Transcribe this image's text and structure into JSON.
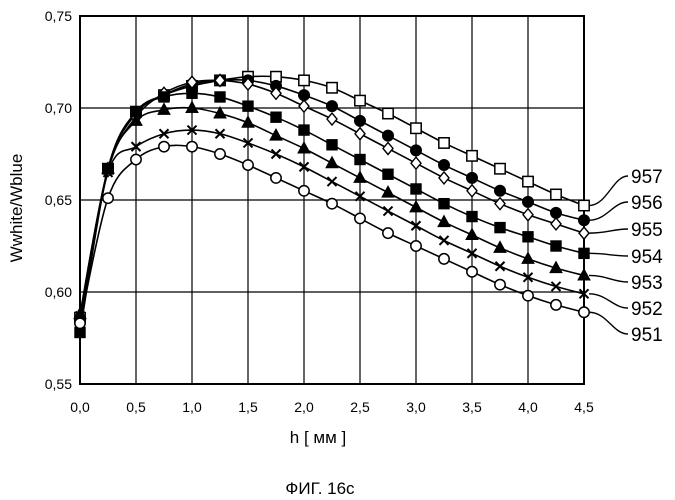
{
  "chart_data": {
    "type": "line",
    "title": "",
    "xlabel": "h [ мм ]",
    "ylabel": "Wwhite/Wblue",
    "xlim": [
      0.0,
      4.5
    ],
    "ylim": [
      0.55,
      0.75
    ],
    "x_ticks": [
      "0,0",
      "0,5",
      "1,0",
      "1,5",
      "2,0",
      "2,5",
      "3,0",
      "3,5",
      "4,0",
      "4,5"
    ],
    "x_tick_values": [
      0.0,
      0.5,
      1.0,
      1.5,
      2.0,
      2.5,
      3.0,
      3.5,
      4.0,
      4.5
    ],
    "y_ticks": [
      "0,55",
      "0,60",
      "0,65",
      "0,70",
      "0,75"
    ],
    "y_tick_values": [
      0.55,
      0.6,
      0.65,
      0.7,
      0.75
    ],
    "grid": "horizontal and vertical",
    "x": [
      0.0,
      0.25,
      0.5,
      0.75,
      1.0,
      1.25,
      1.5,
      1.75,
      2.0,
      2.25,
      2.5,
      2.75,
      3.0,
      3.25,
      3.5,
      3.75,
      4.0,
      4.25,
      4.5
    ],
    "series": [
      {
        "name": "957",
        "marker": "open-square",
        "values": [
          0.586,
          0.667,
          0.698,
          0.707,
          0.712,
          0.715,
          0.717,
          0.717,
          0.715,
          0.711,
          0.704,
          0.697,
          0.689,
          0.681,
          0.674,
          0.667,
          0.66,
          0.653,
          0.647
        ]
      },
      {
        "name": "956",
        "marker": "filled-circle",
        "values": [
          0.585,
          0.667,
          0.697,
          0.707,
          0.713,
          0.715,
          0.715,
          0.712,
          0.707,
          0.701,
          0.693,
          0.685,
          0.677,
          0.669,
          0.662,
          0.655,
          0.649,
          0.643,
          0.639
        ]
      },
      {
        "name": "955",
        "marker": "open-diamond",
        "values": [
          0.584,
          0.666,
          0.695,
          0.708,
          0.714,
          0.715,
          0.713,
          0.708,
          0.701,
          0.694,
          0.686,
          0.678,
          0.67,
          0.662,
          0.655,
          0.648,
          0.642,
          0.637,
          0.632
        ]
      },
      {
        "name": "954",
        "marker": "filled-square",
        "values": [
          0.578,
          0.667,
          0.698,
          0.706,
          0.708,
          0.706,
          0.701,
          0.695,
          0.688,
          0.68,
          0.672,
          0.664,
          0.656,
          0.648,
          0.641,
          0.635,
          0.63,
          0.625,
          0.621
        ]
      },
      {
        "name": "953",
        "marker": "filled-triangle",
        "values": [
          0.588,
          0.667,
          0.693,
          0.699,
          0.7,
          0.697,
          0.692,
          0.685,
          0.678,
          0.67,
          0.662,
          0.654,
          0.646,
          0.638,
          0.631,
          0.624,
          0.618,
          0.613,
          0.609
        ]
      },
      {
        "name": "952",
        "marker": "cross",
        "values": [
          0.587,
          0.665,
          0.679,
          0.686,
          0.688,
          0.686,
          0.681,
          0.675,
          0.668,
          0.66,
          0.652,
          0.644,
          0.636,
          0.628,
          0.621,
          0.614,
          0.608,
          0.603,
          0.599
        ]
      },
      {
        "name": "951",
        "marker": "open-circle",
        "values": [
          0.583,
          0.651,
          0.672,
          0.679,
          0.679,
          0.675,
          0.669,
          0.662,
          0.655,
          0.648,
          0.64,
          0.632,
          0.625,
          0.618,
          0.611,
          0.604,
          0.598,
          0.593,
          0.589
        ]
      }
    ]
  },
  "caption": "ФИГ. 16с"
}
